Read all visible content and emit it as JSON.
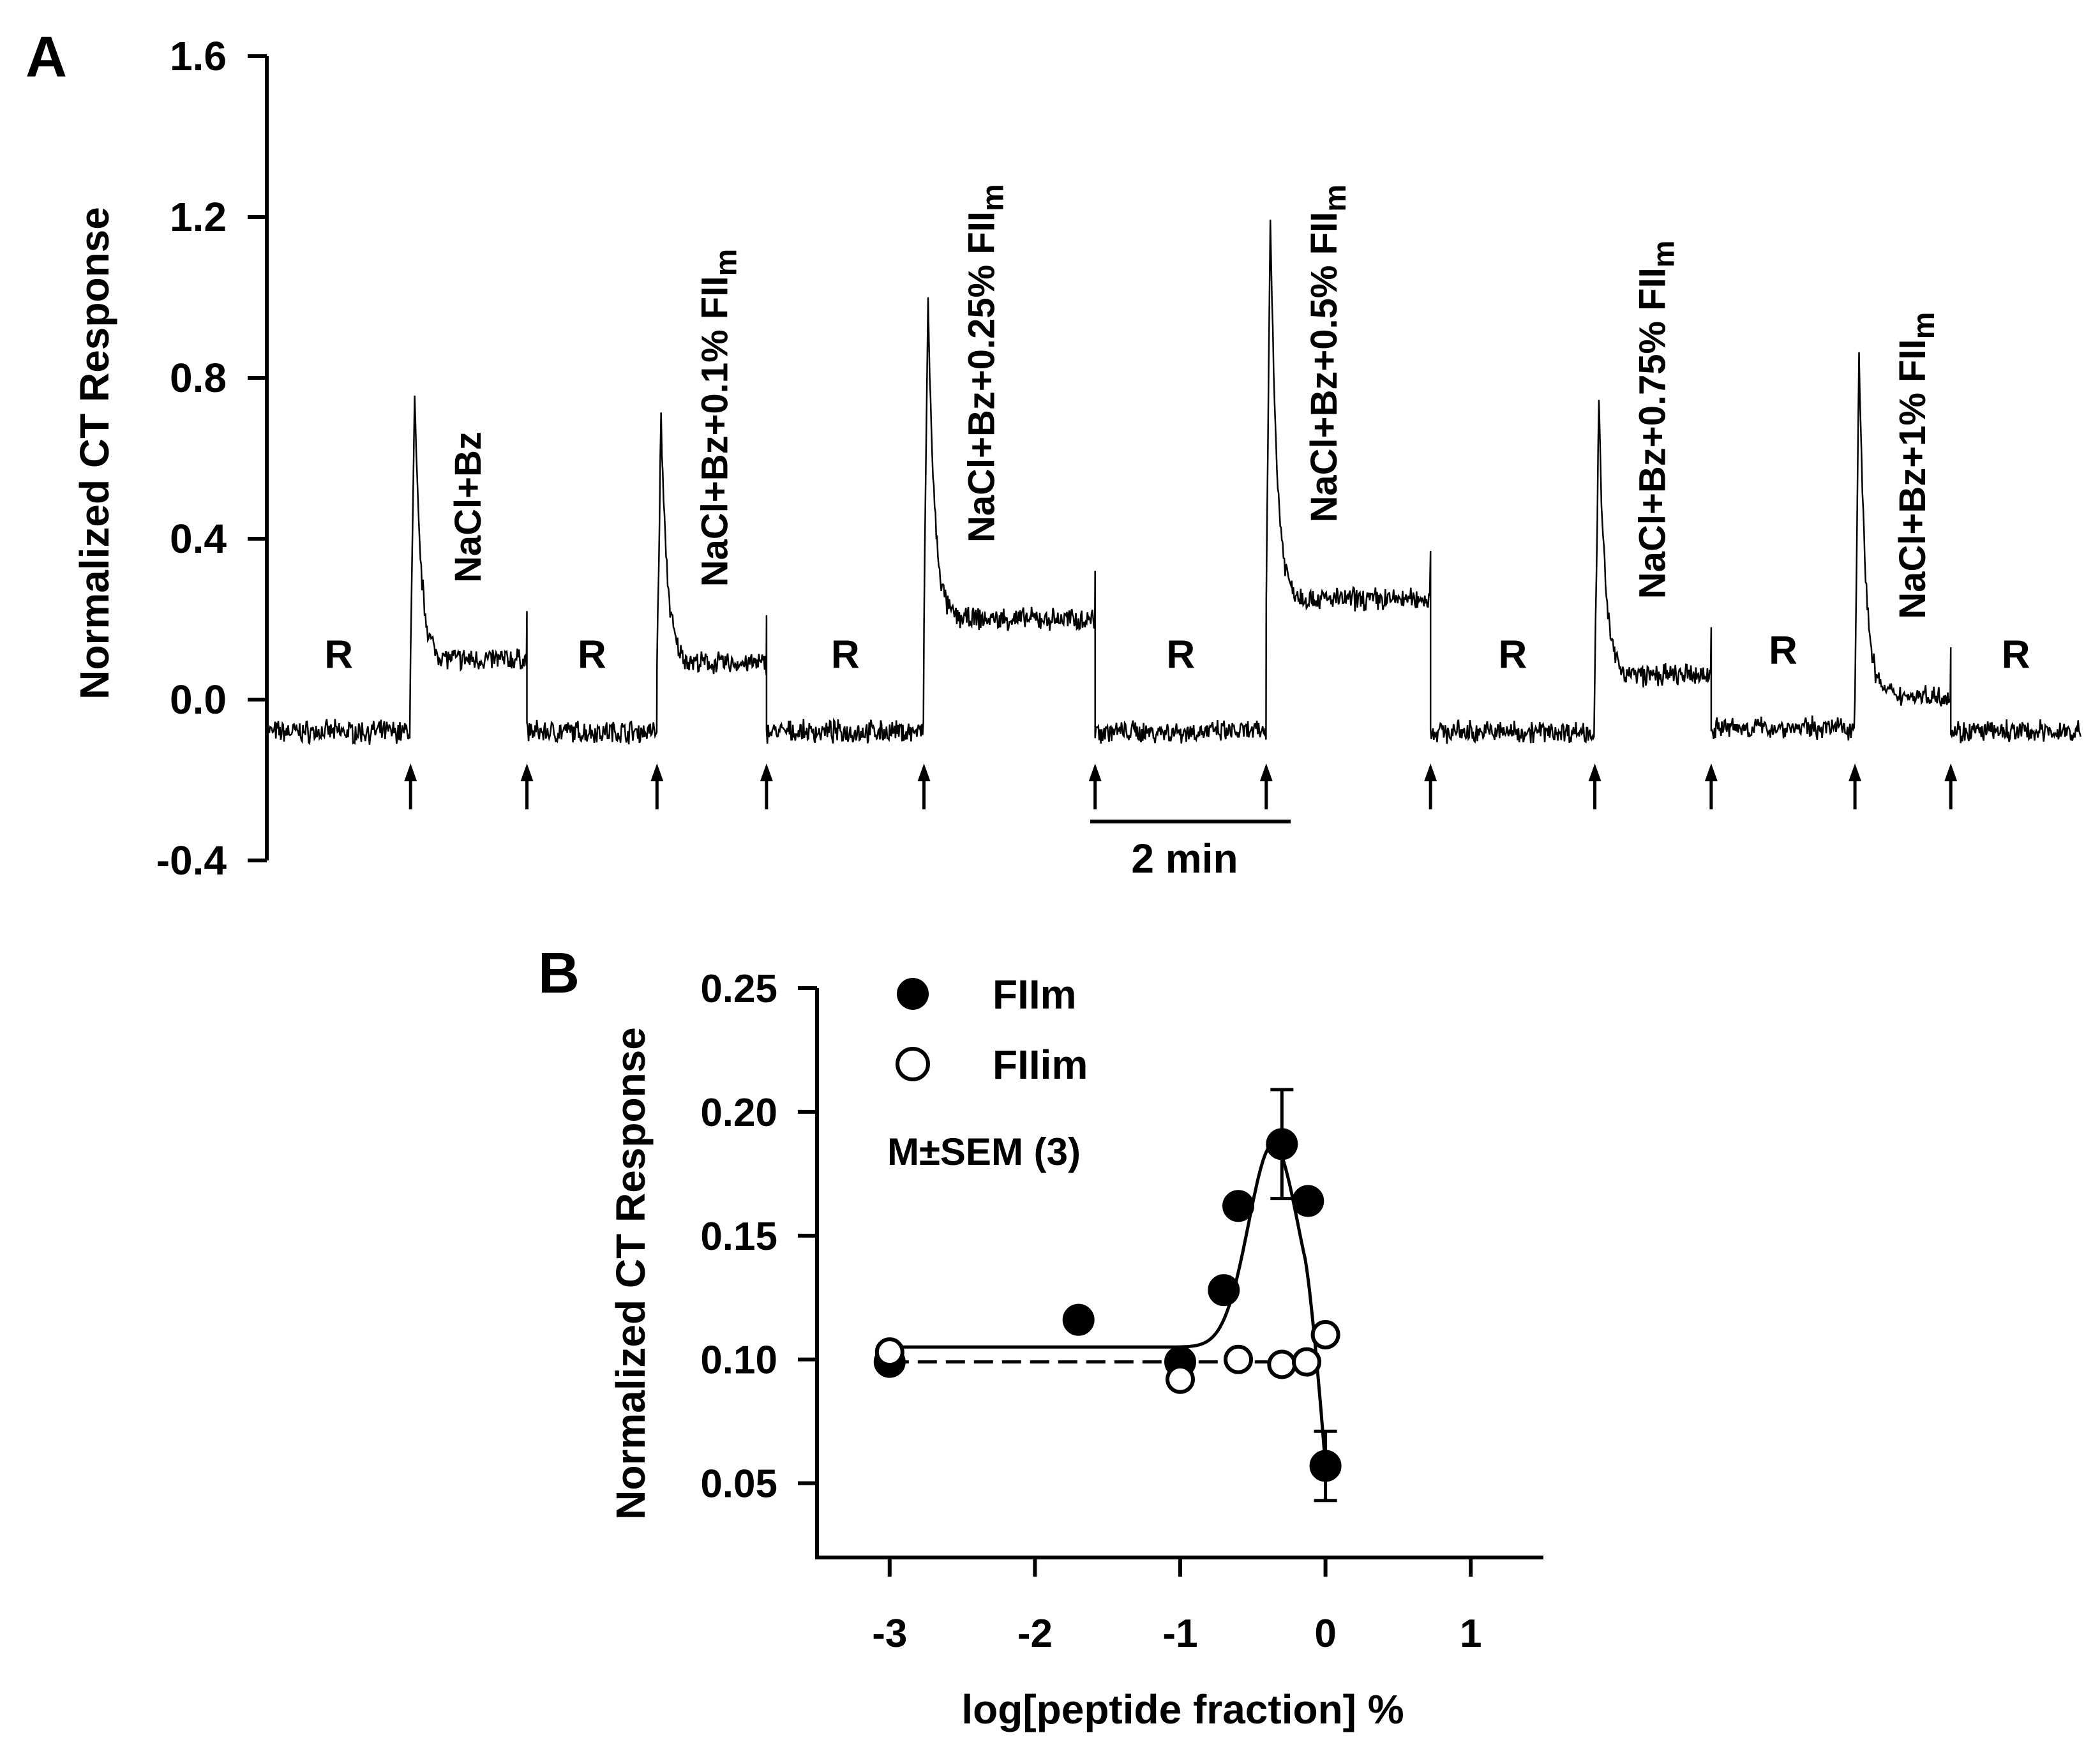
{
  "chart_data": [
    {
      "panel": "A",
      "type": "line",
      "panel_label": "A",
      "ylabel": "Normalized CT Response",
      "ylim": [
        -0.4,
        1.6
      ],
      "yticks": [
        -0.4,
        0.0,
        0.4,
        0.8,
        1.2,
        1.6
      ],
      "ytick_labels": [
        "-0.4",
        "0.0",
        "0.4",
        "0.8",
        "1.2",
        "1.6"
      ],
      "xlim_min": [
        0,
        22
      ],
      "segments": [
        {
          "start": 0,
          "end": 2.1,
          "level": -0.08,
          "peak": null,
          "label": "R"
        },
        {
          "start": 2.1,
          "end": 3.8,
          "level": 0.1,
          "peak": 0.75,
          "label": "NaCl+Bz"
        },
        {
          "start": 3.8,
          "end": 5.7,
          "level": -0.08,
          "peak": null,
          "label": "R"
        },
        {
          "start": 5.7,
          "end": 7.3,
          "level": 0.09,
          "peak": 0.7,
          "label": "NaCl+Bz+0.1% FII",
          "label_sub": "m"
        },
        {
          "start": 7.3,
          "end": 9.6,
          "level": -0.08,
          "peak": null,
          "label": "R"
        },
        {
          "start": 9.6,
          "end": 12.1,
          "level": 0.2,
          "peak": 1.0,
          "label": "NaCl+Bz+0.25% FII",
          "label_sub": "m"
        },
        {
          "start": 12.1,
          "end": 14.6,
          "level": -0.08,
          "peak": null,
          "label": "R"
        },
        {
          "start": 14.6,
          "end": 17.0,
          "level": 0.25,
          "peak": 1.22,
          "label": "NaCl+Bz+0.5% FII",
          "label_sub": "m"
        },
        {
          "start": 17.0,
          "end": 19.4,
          "level": -0.08,
          "peak": null,
          "label": "R"
        },
        {
          "start": 19.4,
          "end": 21.1,
          "level": 0.06,
          "peak": 0.73,
          "label": "NaCl+Bz+0.75% FII",
          "label_sub": "m"
        },
        {
          "start": 21.1,
          "end": 23.2,
          "level": -0.07,
          "peak": null,
          "label": "R"
        },
        {
          "start": 23.2,
          "end": 24.6,
          "level": 0.01,
          "peak": 0.88,
          "label": "NaCl+Bz+1% FII",
          "label_sub": "m"
        },
        {
          "start": 24.6,
          "end": 26.5,
          "level": -0.08,
          "peak": null,
          "label": "R"
        }
      ],
      "stimulus_arrows": [
        2.1,
        3.8,
        5.7,
        7.3,
        9.6,
        12.1,
        14.6,
        17.0,
        19.4,
        21.1,
        23.2,
        24.6
      ],
      "scale_bar": {
        "label": "2 min",
        "duration_min": 2
      }
    },
    {
      "panel": "B",
      "type": "scatter",
      "panel_label": "B",
      "xlabel": "log[peptide fraction] %",
      "ylabel": "Normalized CT Response",
      "xlim": [
        -3.5,
        1.5
      ],
      "ylim": [
        0.02,
        0.25
      ],
      "xticks": [
        -3,
        -2,
        -1,
        0,
        1
      ],
      "xtick_labels": [
        "-3",
        "-2",
        "-1",
        "0",
        "1"
      ],
      "yticks": [
        0.05,
        0.1,
        0.15,
        0.2,
        0.25
      ],
      "ytick_labels": [
        "0.05",
        "0.10",
        "0.15",
        "0.20",
        "0.25"
      ],
      "annotation": "M±SEM (3)",
      "series": [
        {
          "name": "FIIm",
          "marker": "filled-circle",
          "x": [
            -3,
            -1.7,
            -1,
            -0.7,
            -0.6,
            -0.3,
            -0.12,
            0
          ],
          "y": [
            0.099,
            0.116,
            0.099,
            0.128,
            0.162,
            0.187,
            0.164,
            0.057
          ],
          "yerr": [
            0,
            0,
            0,
            0,
            0,
            0.022,
            0,
            0.014
          ],
          "fit": "solid"
        },
        {
          "name": "FIIim",
          "marker": "open-circle",
          "x": [
            -3,
            -1,
            -0.6,
            -0.3,
            -0.13,
            0
          ],
          "y": [
            0.103,
            0.092,
            0.1,
            0.098,
            0.099,
            0.11
          ],
          "yerr": [
            0,
            0,
            0,
            0,
            0,
            0
          ],
          "fit": "dashed"
        }
      ],
      "legend": [
        {
          "label": "FIIm",
          "marker": "filled-circle"
        },
        {
          "label": "FIIim",
          "marker": "open-circle"
        }
      ]
    }
  ]
}
